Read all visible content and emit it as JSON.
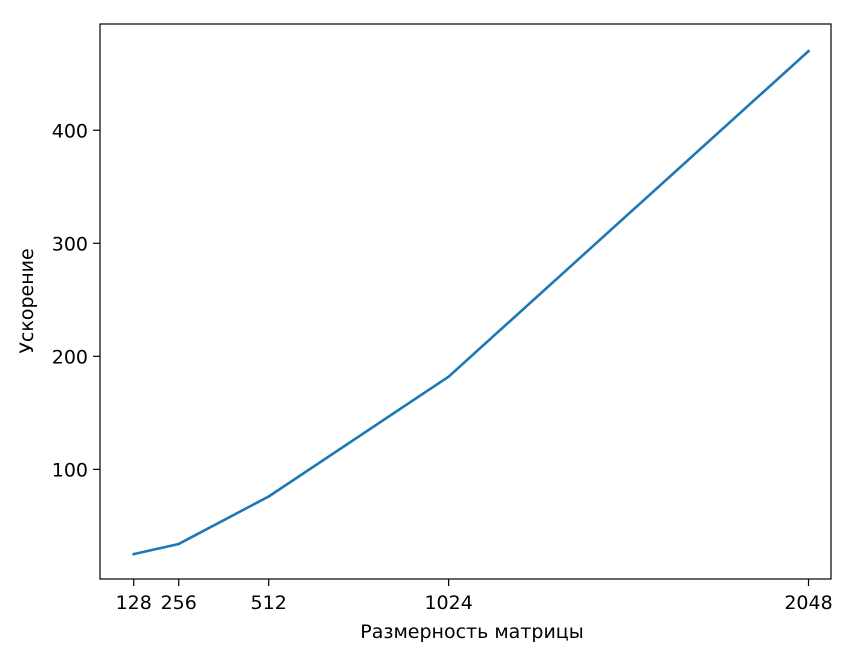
{
  "chart_data": {
    "type": "line",
    "title": "",
    "xlabel": "Размерность матрицы",
    "ylabel": "Ускорение",
    "x": [
      128,
      256,
      512,
      1024,
      2048
    ],
    "x_tick_labels": [
      "128",
      "256",
      "512",
      "1024",
      "2048"
    ],
    "xlim": [
      32,
      2112
    ],
    "ylim": [
      3,
      494
    ],
    "y_ticks": [
      100,
      200,
      300,
      400
    ],
    "y_tick_labels": [
      "100",
      "200",
      "300",
      "400"
    ],
    "series": [
      {
        "values": [
          25,
          34,
          76,
          182,
          470
        ],
        "color": "#1f77b4"
      }
    ],
    "grid": false,
    "legend": "none"
  }
}
